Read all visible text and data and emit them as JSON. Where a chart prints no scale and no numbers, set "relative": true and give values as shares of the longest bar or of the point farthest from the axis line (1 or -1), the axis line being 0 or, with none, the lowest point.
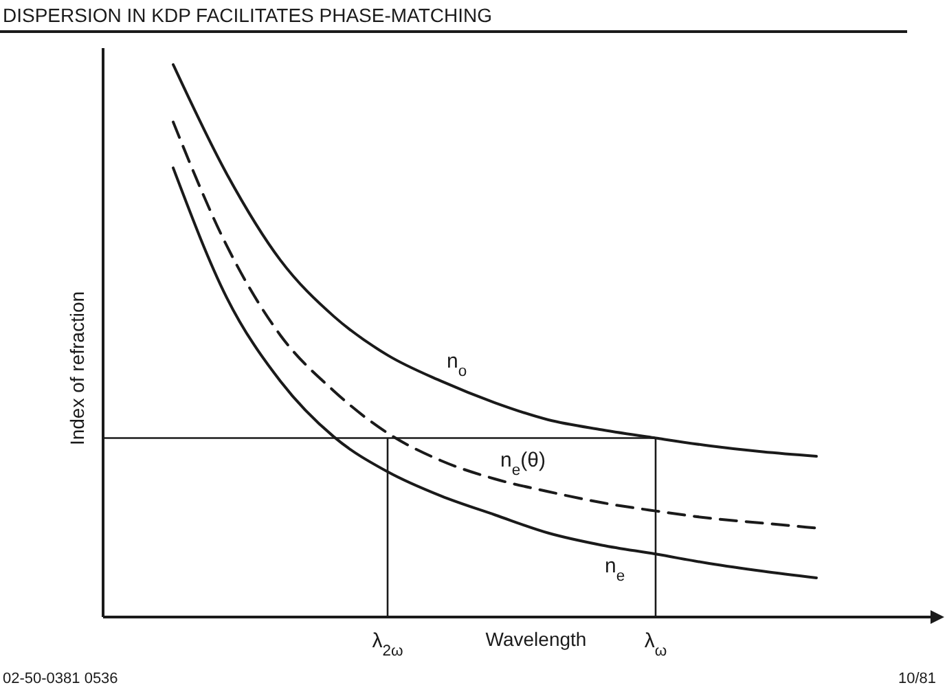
{
  "chart_data": {
    "type": "line",
    "title": "DISPERSION IN KDP FACILITATES PHASE-MATCHING",
    "xlabel": "Wavelength",
    "ylabel": "Index of refraction",
    "relative": true,
    "categories": [
      null,
      null,
      null,
      null,
      "λ$_{2ω}$",
      null,
      null,
      null,
      null,
      "λ$_{ω}$",
      null,
      null,
      null
    ],
    "tick_labels": "x",
    "marker": "none",
    "series": [
      {
        "name": "n$_{o}$",
        "color": "#1a1a1a",
        "line_style": "solid",
        "values": [
          1,
          0.802,
          0.646,
          0.544,
          0.474,
          0.427,
          0.388,
          0.357,
          0.339,
          0.324,
          0.31,
          0.299,
          0.291
        ]
      },
      {
        "name": "n$_{e}$(θ)",
        "color": "#1a1a1a",
        "line_style": "dashed",
        "values": [
          0.896,
          0.672,
          0.51,
          0.409,
          0.333,
          0.283,
          0.25,
          0.227,
          0.207,
          0.192,
          0.179,
          0.17,
          0.161
        ]
      },
      {
        "name": "n$_{e}$",
        "color": "#1a1a1a",
        "line_style": "solid",
        "values": [
          0.813,
          0.578,
          0.427,
          0.326,
          0.263,
          0.219,
          0.185,
          0.152,
          0.13,
          0.114,
          0.097,
          0.083,
          0.071
        ]
      }
    ],
    "ref_lines": [
      {
        "axis": "y",
        "value": 0.324,
        "color": "#1a1a1a"
      },
      {
        "axis": "x",
        "value": "λ$_{2ω}$",
        "color": "#1a1a1a"
      },
      {
        "axis": "x",
        "value": "λ$_{ω}$",
        "color": "#1a1a1a"
      }
    ],
    "annotations": [
      "02-50-0381 0536",
      "10/81"
    ]
  }
}
